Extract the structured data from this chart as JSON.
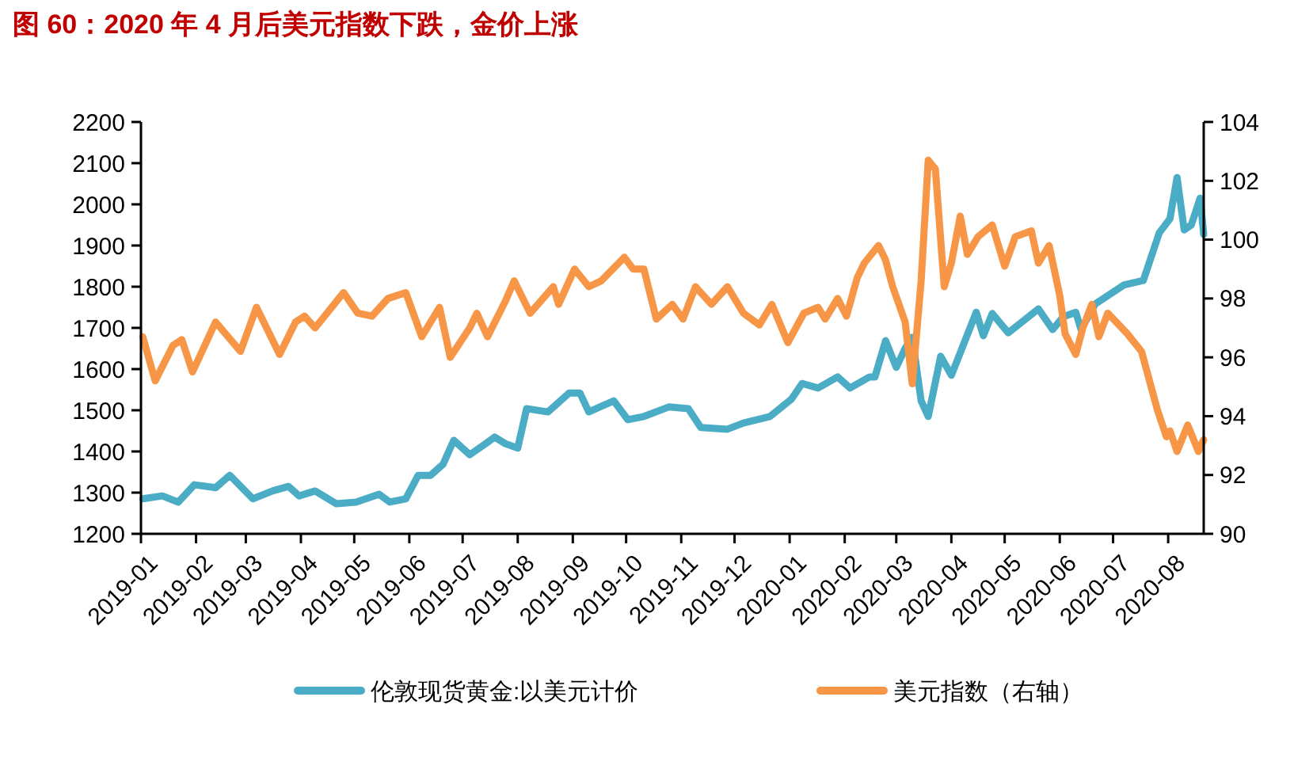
{
  "chart_data": {
    "type": "line",
    "title": "图 60：2020 年 4 月后美元指数下跌，金价上涨",
    "legend": "bottom",
    "grid": false,
    "marker": "none",
    "line_style": "solid",
    "xlim": [
      "2019-01-01",
      "2020-08-21"
    ],
    "xticks": [
      "2019-01",
      "2019-02",
      "2019-03",
      "2019-04",
      "2019-05",
      "2019-06",
      "2019-07",
      "2019-08",
      "2019-09",
      "2019-10",
      "2019-11",
      "2019-12",
      "2020-01",
      "2020-02",
      "2020-03",
      "2020-04",
      "2020-05",
      "2020-06",
      "2020-07",
      "2020-08"
    ],
    "ylim": [
      1200,
      2200
    ],
    "yticks": [
      1200,
      1300,
      1400,
      1500,
      1600,
      1700,
      1800,
      1900,
      2000,
      2100,
      2200
    ],
    "y2lim": [
      90,
      104
    ],
    "y2ticks": [
      90,
      92,
      94,
      96,
      98,
      100,
      102,
      104
    ],
    "series": [
      {
        "name": "伦敦现货黄金:以美元计价",
        "color": "#4bacc6",
        "x": [
          "2019-01-02",
          "2019-01-13",
          "2019-01-22",
          "2019-01-31",
          "2019-02-12",
          "2019-02-20",
          "2019-03-05",
          "2019-03-16",
          "2019-03-25",
          "2019-03-31",
          "2019-04-09",
          "2019-04-21",
          "2019-05-02",
          "2019-05-15",
          "2019-05-21",
          "2019-05-30",
          "2019-06-06",
          "2019-06-13",
          "2019-06-20",
          "2019-06-26",
          "2019-07-05",
          "2019-07-14",
          "2019-07-19",
          "2019-07-25",
          "2019-08-01",
          "2019-08-06",
          "2019-08-18",
          "2019-08-30",
          "2019-09-05",
          "2019-09-10",
          "2019-09-24",
          "2019-10-02",
          "2019-10-11",
          "2019-10-25",
          "2019-11-05",
          "2019-11-12",
          "2019-11-27",
          "2019-12-06",
          "2019-12-21",
          "2020-01-02",
          "2020-01-08",
          "2020-01-17",
          "2020-01-28",
          "2020-02-04",
          "2020-02-15",
          "2020-02-18",
          "2020-02-24",
          "2020-03-01",
          "2020-03-06",
          "2020-03-10",
          "2020-03-15",
          "2020-03-19",
          "2020-03-26",
          "2020-04-01",
          "2020-04-15",
          "2020-04-19",
          "2020-04-24",
          "2020-05-03",
          "2020-05-20",
          "2020-05-28",
          "2020-06-03",
          "2020-06-10",
          "2020-06-13",
          "2020-06-21",
          "2020-07-07",
          "2020-07-18",
          "2020-07-27",
          "2020-08-02",
          "2020-08-06",
          "2020-08-10",
          "2020-08-14",
          "2020-08-19",
          "2020-08-21"
        ],
        "values": [
          1285,
          1292,
          1277,
          1319,
          1312,
          1342,
          1285,
          1304,
          1315,
          1292,
          1304,
          1273,
          1277,
          1296,
          1277,
          1285,
          1342,
          1342,
          1369,
          1427,
          1392,
          1419,
          1435,
          1419,
          1408,
          1504,
          1496,
          1542,
          1542,
          1496,
          1523,
          1477,
          1485,
          1508,
          1504,
          1458,
          1454,
          1469,
          1485,
          1527,
          1565,
          1554,
          1581,
          1554,
          1581,
          1581,
          1669,
          1604,
          1650,
          1677,
          1523,
          1485,
          1631,
          1585,
          1738,
          1681,
          1735,
          1688,
          1746,
          1696,
          1727,
          1738,
          1696,
          1758,
          1804,
          1815,
          1931,
          1965,
          2065,
          1938,
          1950,
          2015,
          1927
        ]
      },
      {
        "name": "美元指数（右轴）",
        "color": "#f79646",
        "axis": "y2",
        "x": [
          "2019-01-02",
          "2019-01-09",
          "2019-01-19",
          "2019-01-24",
          "2019-01-30",
          "2019-02-12",
          "2019-02-26",
          "2019-03-07",
          "2019-03-20",
          "2019-03-29",
          "2019-04-03",
          "2019-04-09",
          "2019-04-25",
          "2019-05-03",
          "2019-05-11",
          "2019-05-20",
          "2019-05-30",
          "2019-06-08",
          "2019-06-18",
          "2019-06-24",
          "2019-07-05",
          "2019-07-09",
          "2019-07-15",
          "2019-07-25",
          "2019-07-30",
          "2019-08-08",
          "2019-08-21",
          "2019-08-24",
          "2019-09-02",
          "2019-09-10",
          "2019-09-17",
          "2019-09-30",
          "2019-10-05",
          "2019-10-11",
          "2019-10-18",
          "2019-10-27",
          "2019-11-02",
          "2019-11-09",
          "2019-11-18",
          "2019-11-27",
          "2019-12-06",
          "2019-12-15",
          "2019-12-22",
          "2019-12-31",
          "2020-01-09",
          "2020-01-17",
          "2020-01-21",
          "2020-01-28",
          "2020-02-02",
          "2020-02-08",
          "2020-02-12",
          "2020-02-20",
          "2020-02-24",
          "2020-02-28",
          "2020-03-06",
          "2020-03-10",
          "2020-03-15",
          "2020-03-19",
          "2020-03-23",
          "2020-03-28",
          "2020-04-01",
          "2020-04-06",
          "2020-04-10",
          "2020-04-16",
          "2020-04-24",
          "2020-05-01",
          "2020-05-07",
          "2020-05-16",
          "2020-05-20",
          "2020-05-26",
          "2020-06-01",
          "2020-06-04",
          "2020-06-10",
          "2020-06-14",
          "2020-06-19",
          "2020-06-23",
          "2020-06-28",
          "2020-07-09",
          "2020-07-17",
          "2020-07-26",
          "2020-07-31",
          "2020-08-02",
          "2020-08-06",
          "2020-08-12",
          "2020-08-18",
          "2020-08-21"
        ],
        "values": [
          96.7,
          95.2,
          96.4,
          96.6,
          95.5,
          97.2,
          96.2,
          97.7,
          96.1,
          97.2,
          97.4,
          97.0,
          98.2,
          97.5,
          97.4,
          98.0,
          98.2,
          96.7,
          97.7,
          96.0,
          97.0,
          97.5,
          96.7,
          97.9,
          98.6,
          97.5,
          98.4,
          97.8,
          99.0,
          98.4,
          98.6,
          99.4,
          99.0,
          99.0,
          97.3,
          97.8,
          97.3,
          98.4,
          97.8,
          98.4,
          97.5,
          97.1,
          97.8,
          96.5,
          97.5,
          97.7,
          97.3,
          98.0,
          97.4,
          98.7,
          99.2,
          99.8,
          99.3,
          98.4,
          97.2,
          95.1,
          98.6,
          102.7,
          102.4,
          98.4,
          99.2,
          100.8,
          99.5,
          100.1,
          100.5,
          99.1,
          100.1,
          100.3,
          99.2,
          99.8,
          98.1,
          96.8,
          96.1,
          97.0,
          97.8,
          96.7,
          97.5,
          96.8,
          96.2,
          94.2,
          93.3,
          93.5,
          92.8,
          93.7,
          92.8,
          93.2
        ]
      }
    ]
  }
}
